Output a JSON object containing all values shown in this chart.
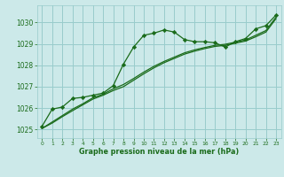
{
  "title": "Graphe pression niveau de la mer (hPa)",
  "bg_color": "#cce9e9",
  "grid_color": "#99cccc",
  "line_color": "#1a6b1a",
  "marker_color": "#1a6b1a",
  "xlim": [
    -0.5,
    23.5
  ],
  "ylim": [
    1024.6,
    1030.8
  ],
  "yticks": [
    1025,
    1026,
    1027,
    1028,
    1029,
    1030
  ],
  "xticks": [
    0,
    1,
    2,
    3,
    4,
    5,
    6,
    7,
    8,
    9,
    10,
    11,
    12,
    13,
    14,
    15,
    16,
    17,
    18,
    19,
    20,
    21,
    22,
    23
  ],
  "series1_x": [
    0,
    1,
    2,
    3,
    4,
    5,
    6,
    7,
    8,
    9,
    10,
    11,
    12,
    13,
    14,
    15,
    16,
    17,
    18,
    19,
    20,
    21,
    22,
    23
  ],
  "series1_y": [
    1025.15,
    1025.95,
    1026.05,
    1026.45,
    1026.5,
    1026.6,
    1026.7,
    1027.05,
    1028.05,
    1028.85,
    1029.4,
    1029.5,
    1029.65,
    1029.55,
    1029.2,
    1029.1,
    1029.1,
    1029.05,
    1028.85,
    1029.1,
    1029.25,
    1029.7,
    1029.85,
    1030.35
  ],
  "series2_x": [
    0,
    1,
    2,
    3,
    4,
    5,
    6,
    7,
    8,
    9,
    10,
    11,
    12,
    13,
    14,
    15,
    16,
    17,
    18,
    19,
    20,
    21,
    22,
    23
  ],
  "series2_y": [
    1025.05,
    1025.35,
    1025.65,
    1025.95,
    1026.2,
    1026.48,
    1026.65,
    1026.9,
    1027.1,
    1027.38,
    1027.68,
    1027.95,
    1028.18,
    1028.38,
    1028.58,
    1028.72,
    1028.83,
    1028.93,
    1028.98,
    1029.08,
    1029.18,
    1029.4,
    1029.62,
    1030.25
  ],
  "series3_x": [
    0,
    1,
    2,
    3,
    4,
    5,
    6,
    7,
    8,
    9,
    10,
    11,
    12,
    13,
    14,
    15,
    16,
    17,
    18,
    19,
    20,
    21,
    22,
    23
  ],
  "series3_y": [
    1025.05,
    1025.3,
    1025.6,
    1025.88,
    1026.15,
    1026.42,
    1026.6,
    1026.82,
    1027.0,
    1027.3,
    1027.6,
    1027.88,
    1028.12,
    1028.32,
    1028.52,
    1028.66,
    1028.78,
    1028.88,
    1028.93,
    1029.03,
    1029.13,
    1029.33,
    1029.55,
    1030.18
  ],
  "xlabel_fontsize": 5.8,
  "ytick_fontsize": 5.5,
  "xtick_fontsize": 4.3,
  "lw": 0.9,
  "ms": 2.2
}
